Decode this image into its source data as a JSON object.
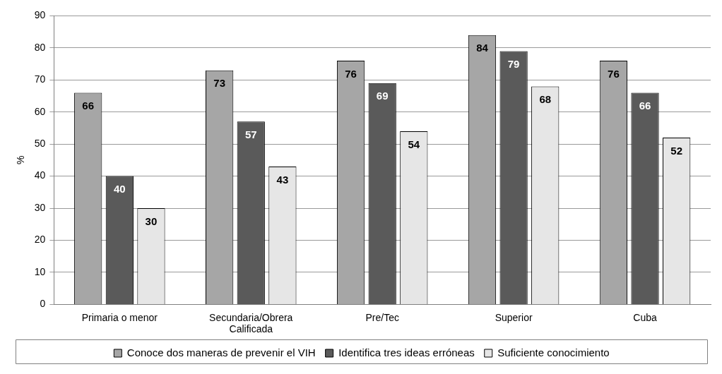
{
  "chart_data": {
    "type": "bar",
    "ylabel": "%",
    "categories": [
      "Primaria o menor",
      "Secundaria/Obrera Calificada",
      "Pre/Tec",
      "Superior",
      "Cuba"
    ],
    "series": [
      {
        "name": "Conoce dos maneras de prevenir el VIH",
        "color": "#a6a6a6",
        "values": [
          66,
          73,
          76,
          84,
          76
        ]
      },
      {
        "name": "Identifica tres ideas erróneas",
        "color": "#5a5a5a",
        "values": [
          40,
          57,
          69,
          79,
          66
        ]
      },
      {
        "name": "Suficiente conocimiento",
        "color": "#e6e6e6",
        "values": [
          30,
          43,
          54,
          68,
          52
        ]
      }
    ],
    "ylim": [
      0,
      90
    ],
    "yticks": [
      0,
      10,
      20,
      30,
      40,
      50,
      60,
      70,
      80,
      90
    ],
    "grid": "y",
    "legend": "bottom",
    "data_labels": true
  }
}
